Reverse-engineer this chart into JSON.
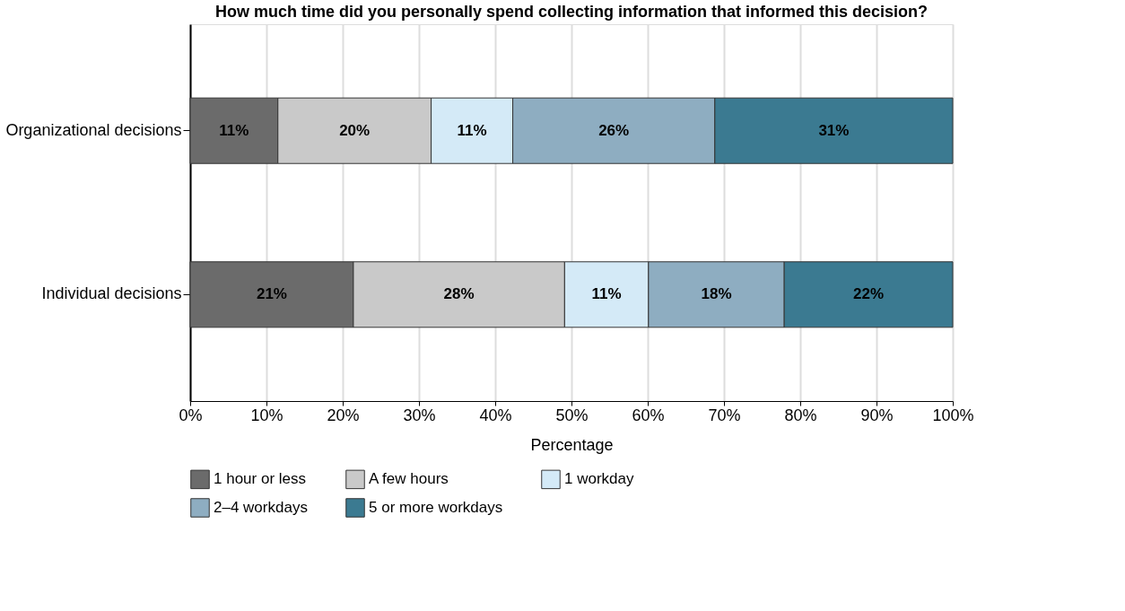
{
  "chart_data": {
    "type": "bar",
    "orientation": "horizontal",
    "stacked": true,
    "title": "How much time did you personally spend collecting information that informed this decision?",
    "xlabel": "Percentage",
    "categories": [
      "Organizational decisions",
      "Individual decisions"
    ],
    "series": [
      {
        "name": "1 hour or less",
        "color": "#6b6b6b",
        "values": [
          11.5,
          21.4
        ],
        "value_labels": [
          "11%",
          "21%"
        ]
      },
      {
        "name": "A few hours",
        "color": "#c9c9c9",
        "values": [
          20.1,
          27.7
        ],
        "value_labels": [
          "20%",
          "28%"
        ]
      },
      {
        "name": "1 workday",
        "color": "#d4eaf7",
        "values": [
          10.7,
          11.0
        ],
        "value_labels": [
          "11%",
          "11%"
        ]
      },
      {
        "name": "2–4 workdays",
        "color": "#8eadc1",
        "values": [
          26.5,
          17.8
        ],
        "value_labels": [
          "26%",
          "18%"
        ]
      },
      {
        "name": "5 or more workdays",
        "color": "#3b7a91",
        "values": [
          31.2,
          22.1
        ],
        "value_labels": [
          "31%",
          "22%"
        ]
      }
    ],
    "xlim": [
      0,
      100
    ],
    "xticks": [
      {
        "value": 0,
        "label": "0%"
      },
      {
        "value": 10,
        "label": "10%"
      },
      {
        "value": 20,
        "label": "20%"
      },
      {
        "value": 30,
        "label": "30%"
      },
      {
        "value": 40,
        "label": "40%"
      },
      {
        "value": 50,
        "label": "50%"
      },
      {
        "value": 60,
        "label": "60%"
      },
      {
        "value": 70,
        "label": "70%"
      },
      {
        "value": 80,
        "label": "80%"
      },
      {
        "value": 90,
        "label": "90%"
      },
      {
        "value": 100,
        "label": "100%"
      }
    ],
    "grid": "x",
    "legend": "bottom"
  }
}
